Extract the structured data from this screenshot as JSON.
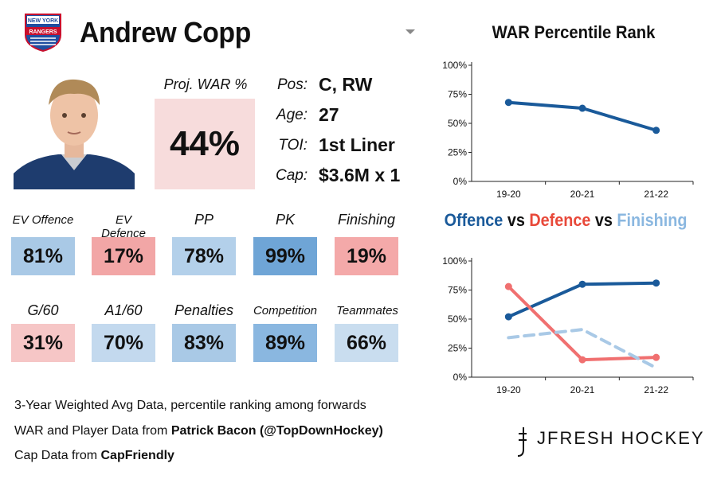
{
  "player": {
    "name": "Andrew Copp",
    "team_logo": "new-york-rangers-logo",
    "logo_text": [
      "NEW YORK",
      "RANGERS"
    ],
    "proj_war_label": "Proj. WAR %",
    "proj_war_value": "44%",
    "info": [
      {
        "key": "Pos:",
        "value": "C, RW"
      },
      {
        "key": "Age:",
        "value": "27"
      },
      {
        "key": "TOI:",
        "value": "1st Liner"
      },
      {
        "key": "Cap:",
        "value": "$3.6M x 1"
      }
    ]
  },
  "stats_row1": [
    {
      "label": "EV Offence",
      "value": "81%",
      "color": "#a9c9e6"
    },
    {
      "label": "EV Defence",
      "value": "17%",
      "color": "#f2a6a6"
    },
    {
      "label": "PP",
      "value": "78%",
      "color": "#b3d0ea"
    },
    {
      "label": "PK",
      "value": "99%",
      "color": "#6fa5d6"
    },
    {
      "label": "Finishing",
      "value": "19%",
      "color": "#f4a9a9"
    }
  ],
  "stats_row2": [
    {
      "label": "G/60",
      "value": "31%",
      "color": "#f6c6c6"
    },
    {
      "label": "A1/60",
      "value": "70%",
      "color": "#c3d9ee"
    },
    {
      "label": "Penalties",
      "value": "83%",
      "color": "#a9c9e6"
    },
    {
      "label": "Competition",
      "value": "89%",
      "color": "#8ab7e0"
    },
    {
      "label": "Teammates",
      "value": "66%",
      "color": "#c9ddef"
    }
  ],
  "footer": {
    "line1": "3-Year Weighted Avg Data, percentile ranking among forwards",
    "line2_prefix": "WAR and Player Data from ",
    "line2_bold": "Patrick Bacon (@TopDownHockey)",
    "line3_prefix": "Cap Data from ",
    "line3_bold": "CapFriendly",
    "brand": "JFRESH HOCKEY"
  },
  "chart_data": [
    {
      "type": "line",
      "title": "WAR Percentile Rank",
      "categories": [
        "19-20",
        "20-21",
        "21-22"
      ],
      "ylim": [
        0,
        100
      ],
      "yticks": [
        "0%",
        "25%",
        "50%",
        "75%",
        "100%"
      ],
      "grid": false,
      "series": [
        {
          "values": [
            68,
            63,
            44
          ],
          "color": "#1a5a9a",
          "dashed": false
        }
      ]
    },
    {
      "type": "line",
      "title_parts": [
        {
          "text": "Offence",
          "color": "#1a5a9a"
        },
        {
          "text": " vs ",
          "color": "#111111"
        },
        {
          "text": "Defence",
          "color": "#e8493a"
        },
        {
          "text": " vs ",
          "color": "#111111"
        },
        {
          "text": "Finishing",
          "color": "#8ab7e0"
        }
      ],
      "categories": [
        "19-20",
        "20-21",
        "21-22"
      ],
      "ylim": [
        0,
        100
      ],
      "yticks": [
        "0%",
        "25%",
        "50%",
        "75%",
        "100%"
      ],
      "grid": false,
      "series": [
        {
          "name": "Offence",
          "values": [
            52,
            80,
            81
          ],
          "color": "#1a5a9a",
          "dashed": false
        },
        {
          "name": "Defence",
          "values": [
            78,
            15,
            17
          ],
          "color": "#f07070",
          "dashed": false
        },
        {
          "name": "Finishing",
          "values": [
            34,
            41,
            8
          ],
          "color": "#a9c9e6",
          "dashed": true
        }
      ]
    }
  ]
}
